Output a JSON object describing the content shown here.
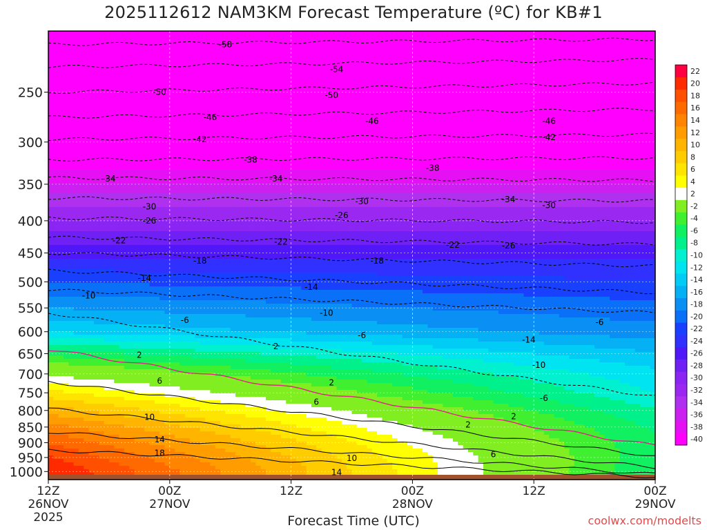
{
  "title": "2025112612 NAM3KM Forecast Temperature (ºC) for KB#1",
  "credit": "coolwx.com/modelts",
  "chart_data": {
    "type": "heatmap",
    "title": "2025112612 NAM3KM Forecast Temperature (ºC) for KB#1",
    "xlabel": "Forecast Time (UTC)",
    "ylabel": "",
    "x_ticks": [
      {
        "hour": 0,
        "label1": "12Z",
        "label2": "26NOV",
        "label3": "2025"
      },
      {
        "hour": 12,
        "label1": "00Z",
        "label2": "27NOV",
        "label3": ""
      },
      {
        "hour": 24,
        "label1": "12Z",
        "label2": "",
        "label3": ""
      },
      {
        "hour": 36,
        "label1": "00Z",
        "label2": "28NOV",
        "label3": ""
      },
      {
        "hour": 48,
        "label1": "12Z",
        "label2": "",
        "label3": ""
      },
      {
        "hour": 60,
        "label1": "00Z",
        "label2": "29NOV",
        "label3": ""
      }
    ],
    "xlim": [
      0,
      60
    ],
    "y_ticks": [
      250,
      300,
      350,
      400,
      450,
      500,
      550,
      600,
      650,
      700,
      750,
      800,
      850,
      900,
      950,
      1000
    ],
    "ylim": [
      1030,
      200
    ],
    "yscale": "log",
    "ground": {
      "color": "#a0522d"
    },
    "colorbar": {
      "levels": [
        -40,
        -38,
        -36,
        -34,
        -32,
        -30,
        -28,
        -26,
        -24,
        -22,
        -20,
        -18,
        -16,
        -14,
        -12,
        -10,
        -8,
        -6,
        -4,
        -2,
        2,
        4,
        6,
        8,
        10,
        12,
        14,
        16,
        18,
        20,
        22
      ],
      "colors": [
        "#ff00ff",
        "#e610f5",
        "#cc20f0",
        "#b030ef",
        "#9a28f0",
        "#8a25f3",
        "#6f20f5",
        "#5018f8",
        "#3030ff",
        "#1a40ff",
        "#0a70f8",
        "#0a90f5",
        "#05b0f5",
        "#00ccf5",
        "#00e3f0",
        "#00f0d0",
        "#00f08c",
        "#10f060",
        "#40f030",
        "#80ee20",
        "#ffffff",
        "#ffff00",
        "#ffe400",
        "#ffcc00",
        "#ffb400",
        "#ff9c00",
        "#ff8400",
        "#ff6a00",
        "#ff5000",
        "#ff2a00",
        "#ff0040"
      ]
    },
    "isotherms": [
      {
        "level": -58,
        "p_start": 210,
        "p_end": 206
      },
      {
        "level": -54,
        "p_start": 228,
        "p_end": 222
      },
      {
        "level": -50,
        "p_start": 250,
        "p_end": 242
      },
      {
        "level": -46,
        "p_start": 274,
        "p_end": 266
      },
      {
        "level": -42,
        "p_start": 297,
        "p_end": 292
      },
      {
        "level": -38,
        "p_start": 320,
        "p_end": 318
      },
      {
        "level": -34,
        "p_start": 342,
        "p_end": 345
      },
      {
        "level": -30,
        "p_start": 368,
        "p_end": 372
      },
      {
        "level": -26,
        "p_start": 396,
        "p_end": 402
      },
      {
        "level": -22,
        "p_start": 425,
        "p_end": 436
      },
      {
        "level": -18,
        "p_start": 450,
        "p_end": 472
      },
      {
        "level": -14,
        "p_start": 480,
        "p_end": 520
      },
      {
        "level": -10,
        "p_start": 515,
        "p_end": 560
      },
      {
        "level": -6,
        "p_start": 560,
        "p_end": 760
      },
      {
        "level": 2,
        "p_start": 640,
        "p_end": 910
      },
      {
        "level": 6,
        "p_start": 720,
        "p_end": 945
      },
      {
        "level": 10,
        "p_start": 795,
        "p_end": 985
      },
      {
        "level": 14,
        "p_start": 865,
        "p_end": 1010
      },
      {
        "level": 18,
        "p_start": 925,
        "p_end": 1020
      }
    ],
    "contour_labels": [
      {
        "text": "-58",
        "hour": 17.5,
        "p": 210
      },
      {
        "text": "-54",
        "hour": 28.5,
        "p": 230
      },
      {
        "text": "-50",
        "hour": 11,
        "p": 250
      },
      {
        "text": "-50",
        "hour": 28,
        "p": 253
      },
      {
        "text": "-46",
        "hour": 16,
        "p": 274
      },
      {
        "text": "-46",
        "hour": 32,
        "p": 278
      },
      {
        "text": "-46",
        "hour": 49.5,
        "p": 278
      },
      {
        "text": "-42",
        "hour": 15,
        "p": 297
      },
      {
        "text": "-42",
        "hour": 49.5,
        "p": 295
      },
      {
        "text": "-38",
        "hour": 20,
        "p": 320
      },
      {
        "text": "-38",
        "hour": 38,
        "p": 330
      },
      {
        "text": "-34",
        "hour": 6,
        "p": 343
      },
      {
        "text": "-34",
        "hour": 22.5,
        "p": 343
      },
      {
        "text": "-34",
        "hour": 45.5,
        "p": 370
      },
      {
        "text": "-30",
        "hour": 10,
        "p": 380
      },
      {
        "text": "-30",
        "hour": 31,
        "p": 373
      },
      {
        "text": "-30",
        "hour": 49.5,
        "p": 378
      },
      {
        "text": "-26",
        "hour": 10,
        "p": 400
      },
      {
        "text": "-26",
        "hour": 29,
        "p": 392
      },
      {
        "text": "-26",
        "hour": 45.5,
        "p": 438
      },
      {
        "text": "-22",
        "hour": 7,
        "p": 430
      },
      {
        "text": "-22",
        "hour": 23,
        "p": 432
      },
      {
        "text": "-22",
        "hour": 40,
        "p": 437
      },
      {
        "text": "-18",
        "hour": 15,
        "p": 463
      },
      {
        "text": "-18",
        "hour": 32.5,
        "p": 463
      },
      {
        "text": "-14",
        "hour": 9.5,
        "p": 493
      },
      {
        "text": "-14",
        "hour": 26,
        "p": 510
      },
      {
        "text": "-14",
        "hour": 47.5,
        "p": 618
      },
      {
        "text": "-10",
        "hour": 4,
        "p": 526
      },
      {
        "text": "-10",
        "hour": 27.5,
        "p": 560
      },
      {
        "text": "-10",
        "hour": 48.5,
        "p": 678
      },
      {
        "text": "-6",
        "hour": 13.5,
        "p": 575
      },
      {
        "text": "-6",
        "hour": 31,
        "p": 608
      },
      {
        "text": "-6",
        "hour": 49,
        "p": 765
      },
      {
        "text": "-6",
        "hour": 54.5,
        "p": 580
      },
      {
        "text": "2",
        "hour": 9,
        "p": 653
      },
      {
        "text": "2",
        "hour": 22.5,
        "p": 633
      },
      {
        "text": "2",
        "hour": 28,
        "p": 723
      },
      {
        "text": "2",
        "hour": 41.5,
        "p": 843
      },
      {
        "text": "2",
        "hour": 46,
        "p": 818
      },
      {
        "text": "6",
        "hour": 11,
        "p": 718
      },
      {
        "text": "6",
        "hour": 26.5,
        "p": 776
      },
      {
        "text": "6",
        "hour": 44,
        "p": 940
      },
      {
        "text": "10",
        "hour": 10,
        "p": 820
      },
      {
        "text": "10",
        "hour": 30,
        "p": 953
      },
      {
        "text": "14",
        "hour": 11,
        "p": 890
      },
      {
        "text": "14",
        "hour": 28.5,
        "p": 1003
      },
      {
        "text": "18",
        "hour": 11,
        "p": 935
      }
    ]
  }
}
